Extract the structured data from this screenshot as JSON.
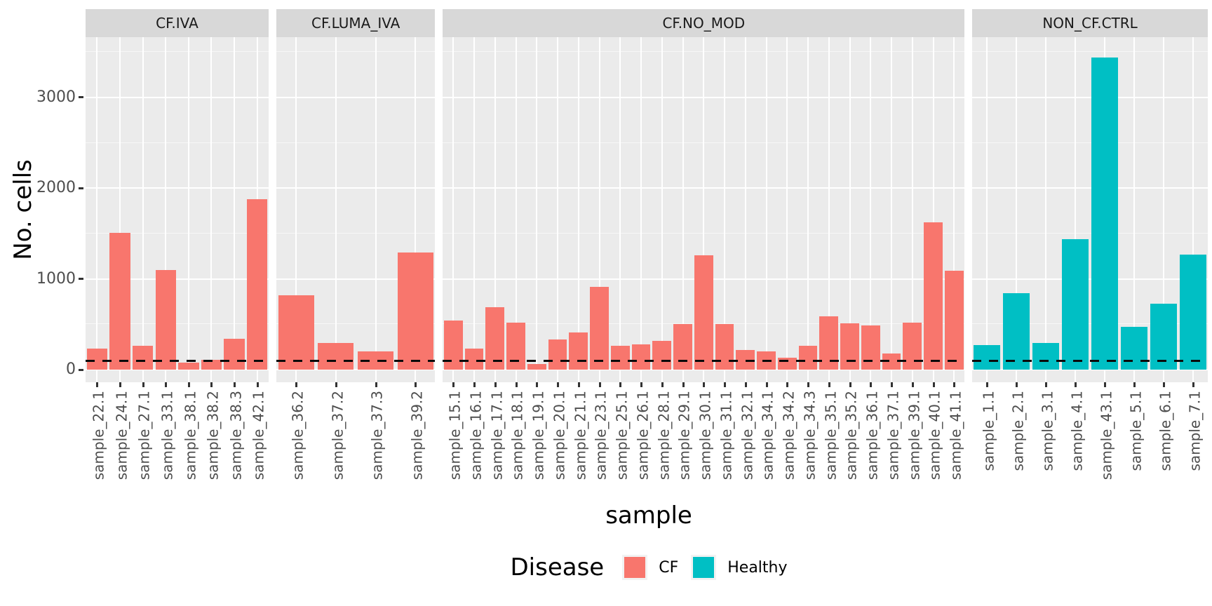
{
  "figure": {
    "y_tick_labels": [
      "0",
      "1000",
      "2000",
      "3000"
    ]
  },
  "chart_data": {
    "type": "bar",
    "title": "",
    "xlabel": "sample",
    "ylabel": "No. cells",
    "ylim": [
      0,
      3660
    ],
    "y_major_gridlines": [
      0,
      1000,
      2000,
      3000
    ],
    "y_minor_gridlines": [
      500,
      1500,
      2500,
      3500
    ],
    "grid": true,
    "threshold_line": {
      "value": 100,
      "style": "dashed",
      "color": "#0a0a0a"
    },
    "legend": {
      "title": "Disease",
      "position": "bottom",
      "items": [
        {
          "label": "CF",
          "color": "#F8766D"
        },
        {
          "label": "Healthy",
          "color": "#00BFC4"
        }
      ]
    },
    "colors": {
      "CF": "#F8766D",
      "Healthy": "#00BFC4"
    },
    "facets": [
      {
        "label": "CF.IVA",
        "disease": "CF",
        "samples": [
          {
            "label": "sample_22.1",
            "value": 230
          },
          {
            "label": "sample_24.1",
            "value": 1510
          },
          {
            "label": "sample_27.1",
            "value": 260
          },
          {
            "label": "sample_33.1",
            "value": 1100
          },
          {
            "label": "sample_38.1",
            "value": 80
          },
          {
            "label": "sample_38.2",
            "value": 110
          },
          {
            "label": "sample_38.3",
            "value": 340
          },
          {
            "label": "sample_42.1",
            "value": 1880
          }
        ]
      },
      {
        "label": "CF.LUMA_IVA",
        "disease": "CF",
        "samples": [
          {
            "label": "sample_36.2",
            "value": 820
          },
          {
            "label": "sample_37.2",
            "value": 290
          },
          {
            "label": "sample_37.3",
            "value": 200
          },
          {
            "label": "sample_39.2",
            "value": 1290
          }
        ]
      },
      {
        "label": "CF.NO_MOD",
        "disease": "CF",
        "samples": [
          {
            "label": "sample_15.1",
            "value": 540
          },
          {
            "label": "sample_16.1",
            "value": 230
          },
          {
            "label": "sample_17.1",
            "value": 690
          },
          {
            "label": "sample_18.1",
            "value": 520
          },
          {
            "label": "sample_19.1",
            "value": 60
          },
          {
            "label": "sample_20.1",
            "value": 330
          },
          {
            "label": "sample_21.1",
            "value": 410
          },
          {
            "label": "sample_23.1",
            "value": 910
          },
          {
            "label": "sample_25.1",
            "value": 260
          },
          {
            "label": "sample_26.1",
            "value": 280
          },
          {
            "label": "sample_28.1",
            "value": 320
          },
          {
            "label": "sample_29.1",
            "value": 500
          },
          {
            "label": "sample_30.1",
            "value": 1260
          },
          {
            "label": "sample_31.1",
            "value": 500
          },
          {
            "label": "sample_32.1",
            "value": 220
          },
          {
            "label": "sample_34.1",
            "value": 200
          },
          {
            "label": "sample_34.2",
            "value": 130
          },
          {
            "label": "sample_34.3",
            "value": 260
          },
          {
            "label": "sample_35.1",
            "value": 590
          },
          {
            "label": "sample_35.2",
            "value": 510
          },
          {
            "label": "sample_36.1",
            "value": 490
          },
          {
            "label": "sample_37.1",
            "value": 180
          },
          {
            "label": "sample_39.1",
            "value": 520
          },
          {
            "label": "sample_40.1",
            "value": 1620
          },
          {
            "label": "sample_41.1",
            "value": 1090
          }
        ]
      },
      {
        "label": "NON_CF.CTRL",
        "disease": "Healthy",
        "samples": [
          {
            "label": "sample_1.1",
            "value": 270
          },
          {
            "label": "sample_2.1",
            "value": 840
          },
          {
            "label": "sample_3.1",
            "value": 290
          },
          {
            "label": "sample_4.1",
            "value": 1440
          },
          {
            "label": "sample_43.1",
            "value": 3440
          },
          {
            "label": "sample_5.1",
            "value": 470
          },
          {
            "label": "sample_6.1",
            "value": 730
          },
          {
            "label": "sample_7.1",
            "value": 1270
          }
        ]
      }
    ]
  },
  "theme": {
    "panel_bg": "#ebebeb",
    "strip_bg": "#d8d8d8",
    "gridline": "#ffffff",
    "axis_text": "#4d4d4d",
    "title_text": "#000000"
  }
}
